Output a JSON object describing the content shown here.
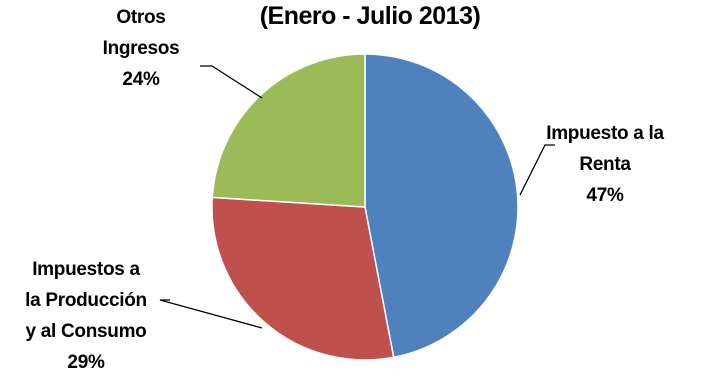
{
  "chart_data": {
    "type": "pie",
    "title": "(Enero - Julio 2013)",
    "slices": [
      {
        "label_lines": [
          "Impuesto a la",
          "Renta"
        ],
        "pct_label": "47%",
        "value": 47,
        "color": "#4F81BD"
      },
      {
        "label_lines": [
          "Impuestos a",
          "la Producción",
          "y al Consumo"
        ],
        "pct_label": "29%",
        "value": 29,
        "color": "#C0504D"
      },
      {
        "label_lines": [
          "Otros",
          "Ingresos"
        ],
        "pct_label": "24%",
        "value": 24,
        "color": "#9BBB59"
      }
    ],
    "legend": "none",
    "start_angle": "12 o'clock",
    "direction": "clockwise"
  }
}
